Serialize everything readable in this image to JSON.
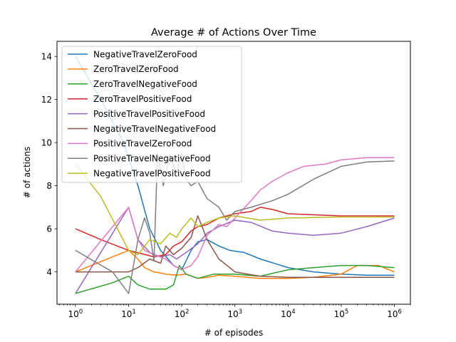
{
  "chart_data": {
    "type": "line",
    "title": "Average # of Actions Over Time",
    "xlabel": "# of episodes",
    "ylabel": "# of actions",
    "xscale": "log",
    "xlim": [
      0.45,
      2000000
    ],
    "ylim": [
      2.5,
      14.7
    ],
    "xticks": [
      {
        "value": 1,
        "base": "10",
        "exp": "0"
      },
      {
        "value": 10,
        "base": "10",
        "exp": "1"
      },
      {
        "value": 100,
        "base": "10",
        "exp": "2"
      },
      {
        "value": 1000,
        "base": "10",
        "exp": "3"
      },
      {
        "value": 10000,
        "base": "10",
        "exp": "4"
      },
      {
        "value": 100000,
        "base": "10",
        "exp": "5"
      },
      {
        "value": 1000000,
        "base": "10",
        "exp": "6"
      }
    ],
    "yticks": [
      4,
      6,
      8,
      10,
      12,
      14
    ],
    "grid": false,
    "legend_position": "upper-left",
    "series": [
      {
        "name": "NegativeTravelZeroFood",
        "color": "#1f77b4",
        "points": [
          [
            1,
            14.0
          ],
          [
            3,
            12.0
          ],
          [
            8,
            10.0
          ],
          [
            15,
            8.0
          ],
          [
            25,
            6.0
          ],
          [
            40,
            5.0
          ],
          [
            70,
            4.3
          ],
          [
            100,
            4.1
          ],
          [
            150,
            5.0
          ],
          [
            200,
            5.4
          ],
          [
            300,
            5.5
          ],
          [
            500,
            5.2
          ],
          [
            800,
            5.0
          ],
          [
            1500,
            4.9
          ],
          [
            3000,
            4.6
          ],
          [
            10000,
            4.2
          ],
          [
            30000,
            4.0
          ],
          [
            100000,
            3.9
          ],
          [
            300000,
            3.85
          ],
          [
            1000000,
            3.85
          ]
        ]
      },
      {
        "name": "ZeroTravelZeroFood",
        "color": "#ff7f0e",
        "points": [
          [
            1,
            4.0
          ],
          [
            10,
            5.0
          ],
          [
            15,
            4.6
          ],
          [
            20,
            4.2
          ],
          [
            30,
            4.0
          ],
          [
            50,
            3.9
          ],
          [
            80,
            3.85
          ],
          [
            120,
            3.9
          ],
          [
            200,
            3.7
          ],
          [
            300,
            3.75
          ],
          [
            500,
            3.85
          ],
          [
            1000,
            3.8
          ],
          [
            3000,
            3.7
          ],
          [
            10000,
            3.7
          ],
          [
            30000,
            3.75
          ],
          [
            100000,
            3.9
          ],
          [
            200000,
            4.3
          ],
          [
            500000,
            4.3
          ],
          [
            1000000,
            4.0
          ]
        ]
      },
      {
        "name": "ZeroTravelNegativeFood",
        "color": "#2ca02c",
        "points": [
          [
            1,
            3.0
          ],
          [
            5,
            3.5
          ],
          [
            10,
            3.8
          ],
          [
            15,
            3.4
          ],
          [
            25,
            3.2
          ],
          [
            50,
            3.2
          ],
          [
            70,
            3.4
          ],
          [
            90,
            4.3
          ],
          [
            120,
            3.9
          ],
          [
            200,
            3.7
          ],
          [
            400,
            3.9
          ],
          [
            1000,
            3.9
          ],
          [
            3000,
            3.8
          ],
          [
            10000,
            4.1
          ],
          [
            30000,
            4.2
          ],
          [
            100000,
            4.3
          ],
          [
            300000,
            4.3
          ],
          [
            1000000,
            4.2
          ]
        ]
      },
      {
        "name": "ZeroTravelPositiveFood",
        "color": "#d62728",
        "points": [
          [
            1,
            6.0
          ],
          [
            3,
            5.5
          ],
          [
            10,
            5.0
          ],
          [
            30,
            4.7
          ],
          [
            50,
            4.8
          ],
          [
            70,
            5.2
          ],
          [
            100,
            5.4
          ],
          [
            150,
            5.9
          ],
          [
            200,
            6.1
          ],
          [
            300,
            6.2
          ],
          [
            500,
            6.5
          ],
          [
            1000,
            6.7
          ],
          [
            2000,
            6.8
          ],
          [
            3000,
            7.0
          ],
          [
            5000,
            6.9
          ],
          [
            10000,
            6.7
          ],
          [
            100000,
            6.6
          ],
          [
            1000000,
            6.6
          ]
        ]
      },
      {
        "name": "PositiveTravelPositiveFood",
        "color": "#9467bd",
        "points": [
          [
            1,
            3.0
          ],
          [
            10,
            7.0
          ],
          [
            15,
            5.5
          ],
          [
            25,
            4.9
          ],
          [
            40,
            4.7
          ],
          [
            60,
            4.8
          ],
          [
            80,
            4.6
          ],
          [
            120,
            4.9
          ],
          [
            200,
            5.3
          ],
          [
            300,
            5.8
          ],
          [
            500,
            6.1
          ],
          [
            1000,
            6.4
          ],
          [
            2000,
            6.3
          ],
          [
            5000,
            5.9
          ],
          [
            10000,
            5.8
          ],
          [
            30000,
            5.7
          ],
          [
            100000,
            5.8
          ],
          [
            300000,
            6.1
          ],
          [
            1000000,
            6.5
          ]
        ]
      },
      {
        "name": "NegativeTravelNegativeFood",
        "color": "#8c564b",
        "points": [
          [
            1,
            4.0
          ],
          [
            10,
            4.0
          ],
          [
            15,
            4.2
          ],
          [
            25,
            4.6
          ],
          [
            40,
            4.4
          ],
          [
            50,
            5.2
          ],
          [
            70,
            4.8
          ],
          [
            100,
            5.1
          ],
          [
            150,
            5.6
          ],
          [
            200,
            6.6
          ],
          [
            250,
            6.0
          ],
          [
            300,
            5.5
          ],
          [
            500,
            4.6
          ],
          [
            1000,
            4.0
          ],
          [
            3000,
            3.8
          ],
          [
            10000,
            3.75
          ],
          [
            100000,
            3.75
          ],
          [
            1000000,
            3.75
          ]
        ]
      },
      {
        "name": "PositiveTravelZeroFood",
        "color": "#e377c2",
        "points": [
          [
            1,
            4.0
          ],
          [
            10,
            7.0
          ],
          [
            15,
            5.5
          ],
          [
            20,
            5.0
          ],
          [
            30,
            4.8
          ],
          [
            50,
            4.6
          ],
          [
            70,
            4.3
          ],
          [
            100,
            4.1
          ],
          [
            150,
            4.3
          ],
          [
            200,
            4.7
          ],
          [
            300,
            5.7
          ],
          [
            500,
            6.2
          ],
          [
            700,
            6.1
          ],
          [
            1000,
            6.5
          ],
          [
            2000,
            7.3
          ],
          [
            3000,
            7.8
          ],
          [
            5000,
            8.2
          ],
          [
            10000,
            8.6
          ],
          [
            20000,
            8.9
          ],
          [
            50000,
            9.0
          ],
          [
            100000,
            9.2
          ],
          [
            300000,
            9.3
          ],
          [
            1000000,
            9.3
          ]
        ]
      },
      {
        "name": "PositiveTravelNegativeFood",
        "color": "#7f7f7f",
        "points": [
          [
            1,
            5.0
          ],
          [
            5,
            4.0
          ],
          [
            10,
            3.0
          ],
          [
            15,
            5.5
          ],
          [
            20,
            6.5
          ],
          [
            25,
            5.8
          ],
          [
            30,
            4.5
          ],
          [
            35,
            9.5
          ],
          [
            45,
            8.0
          ],
          [
            60,
            9.4
          ],
          [
            80,
            8.6
          ],
          [
            100,
            9.5
          ],
          [
            120,
            8.3
          ],
          [
            150,
            8.0
          ],
          [
            200,
            8.2
          ],
          [
            300,
            7.4
          ],
          [
            500,
            7.0
          ],
          [
            700,
            6.4
          ],
          [
            1000,
            6.8
          ],
          [
            2000,
            7.0
          ],
          [
            5000,
            7.3
          ],
          [
            10000,
            7.6
          ],
          [
            30000,
            8.3
          ],
          [
            100000,
            8.9
          ],
          [
            300000,
            9.1
          ],
          [
            1000000,
            9.15
          ]
        ]
      },
      {
        "name": "NegativeTravelPositiveFood",
        "color": "#bcbd22",
        "points": [
          [
            1,
            9.0
          ],
          [
            3,
            7.5
          ],
          [
            10,
            5.0
          ],
          [
            15,
            4.8
          ],
          [
            25,
            5.5
          ],
          [
            40,
            5.3
          ],
          [
            60,
            5.8
          ],
          [
            80,
            5.6
          ],
          [
            100,
            6.0
          ],
          [
            150,
            6.5
          ],
          [
            200,
            6.1
          ],
          [
            300,
            6.3
          ],
          [
            500,
            6.5
          ],
          [
            1000,
            6.6
          ],
          [
            3000,
            6.4
          ],
          [
            10000,
            6.5
          ],
          [
            100000,
            6.55
          ],
          [
            1000000,
            6.55
          ]
        ]
      }
    ]
  }
}
